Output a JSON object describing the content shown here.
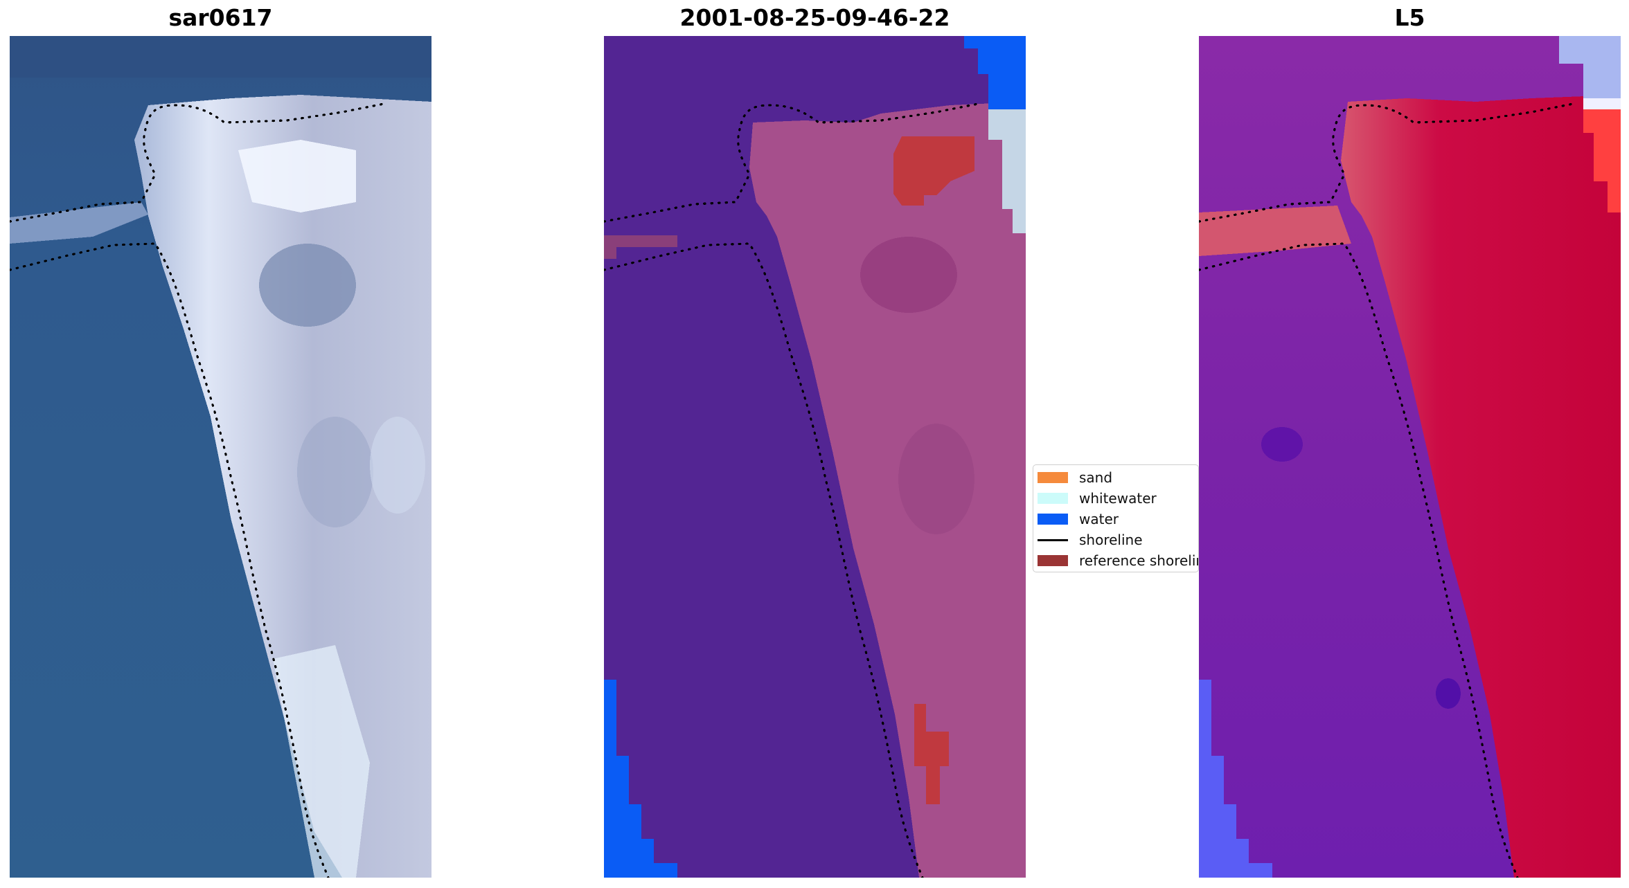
{
  "panels": [
    {
      "title": "sar0617"
    },
    {
      "title": "2001-08-25-09-46-22"
    },
    {
      "title": "L5"
    }
  ],
  "legend": {
    "items": [
      {
        "label": "sand",
        "color": "#f58a3c",
        "kind": "patch"
      },
      {
        "label": "whitewater",
        "color": "#ccfbfa",
        "kind": "patch"
      },
      {
        "label": "water",
        "color": "#0a5cf5",
        "kind": "patch"
      },
      {
        "label": "shoreline",
        "color": "#000000",
        "kind": "line"
      },
      {
        "label": "reference shoreline",
        "color": "#9a3434",
        "kind": "patch"
      }
    ]
  },
  "colors": {
    "rgb_water": "#2e5a8f",
    "rgb_sand": "#c9d3ea",
    "class_water_dark": "#532593",
    "class_sand_pink": "#a64f8c",
    "class_reference": "#c0393f",
    "class_water_bright": "#0a5cf5",
    "index_low": "#7a22a8",
    "index_high": "#c8073c"
  }
}
